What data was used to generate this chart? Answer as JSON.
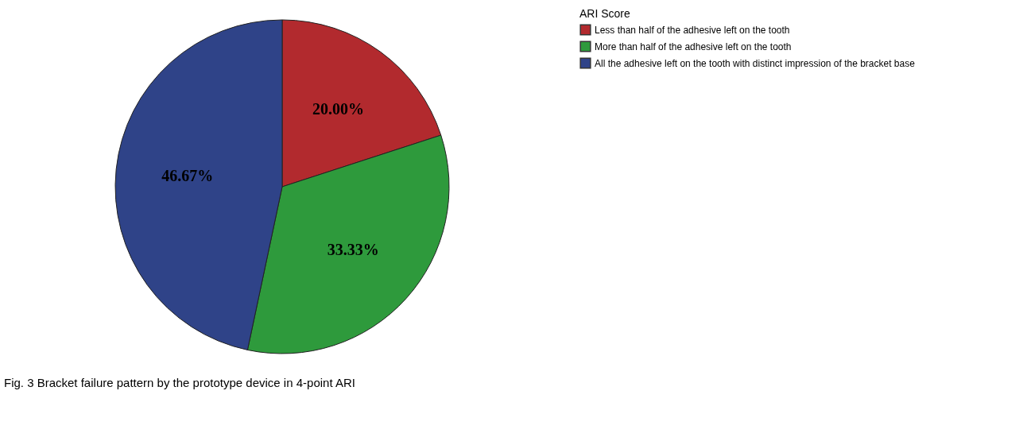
{
  "chart_data": {
    "type": "pie",
    "legend_title": "ARI Score",
    "categories": [
      "Less than half of the adhesive left on the tooth",
      "More than half of the adhesive left on the tooth",
      "All the adhesive left on the tooth with distinct impression of the bracket base"
    ],
    "values": [
      20.0,
      33.33,
      46.67
    ],
    "colors": [
      "#b22a2e",
      "#2e9a3c",
      "#2f4388"
    ],
    "value_labels": [
      "20.00%",
      "33.33%",
      "46.67%"
    ],
    "legend": "top right",
    "annotations": [
      "Fig. 3 Bracket failure pattern by the prototype device in 4-point ARI"
    ]
  }
}
